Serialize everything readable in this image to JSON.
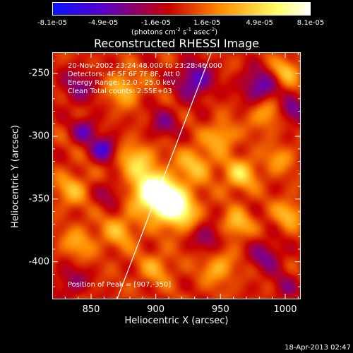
{
  "colorbar": {
    "ticks": [
      "-8.1e-05",
      "-4.9e-05",
      "-1.6e-05",
      "1.6e-05",
      "4.9e-05",
      "8.1e-05"
    ],
    "tick_values": [
      -8.1e-05,
      -4.9e-05,
      -1.6e-05,
      1.6e-05,
      4.9e-05,
      8.1e-05
    ],
    "range": [
      -8.1e-05,
      8.1e-05
    ],
    "units_prefix": "(photons cm",
    "units_exp1": "-2",
    "units_mid": " s",
    "units_exp2": "-1",
    "units_suffix": " asec",
    "units_exp3": "-2",
    "units_close": ")",
    "colors": [
      "#0a14ff",
      "#5a00c8",
      "#c80000",
      "#ff8c00",
      "#ffff64",
      "#ffffff"
    ]
  },
  "chart_data": {
    "type": "heatmap",
    "title": "Reconstructed RHESSI Image",
    "xlabel": "Heliocentric X (arcsec)",
    "ylabel": "Heliocentric Y (arcsec)",
    "xlim": [
      820,
      1012
    ],
    "ylim": [
      -430,
      -233
    ],
    "xticks": [
      850,
      900,
      950,
      1000
    ],
    "yticks": [
      -250,
      -300,
      -350,
      -400
    ],
    "annotations": [
      "20-Nov-2002 23:24:48.000 to 23:28:46.000",
      "Detectors: 4F 5F 6F 7F 8F, Att 0",
      "Energy Range: 12.0 - 25.0 keV",
      "Clean     Total counts: 2.55E+03"
    ],
    "peak_label": "Position of Peak = [907,-350]",
    "peak": [
      907,
      -350
    ],
    "limb_line": [
      [
        870,
        -430
      ],
      [
        943,
        -233
      ]
    ],
    "intensity_blobs": [
      {
        "x": 907,
        "y": -350,
        "amp": 8.1e-05,
        "s": 11
      },
      {
        "x": 895,
        "y": -343,
        "amp": 6.2e-05,
        "s": 10
      },
      {
        "x": 918,
        "y": -360,
        "amp": 5e-05,
        "s": 10
      },
      {
        "x": 885,
        "y": -320,
        "amp": 4.2e-05,
        "s": 11
      },
      {
        "x": 930,
        "y": -322,
        "amp": 3.8e-05,
        "s": 10
      },
      {
        "x": 950,
        "y": -300,
        "amp": 3.8e-05,
        "s": 8
      },
      {
        "x": 965,
        "y": -330,
        "amp": 4.6e-05,
        "s": 9
      },
      {
        "x": 962,
        "y": -370,
        "amp": 4e-05,
        "s": 8
      },
      {
        "x": 985,
        "y": -282,
        "amp": 3.4e-05,
        "s": 9
      },
      {
        "x": 1002,
        "y": -362,
        "amp": 3.6e-05,
        "s": 8
      },
      {
        "x": 948,
        "y": -405,
        "amp": 3.4e-05,
        "s": 9
      },
      {
        "x": 872,
        "y": -375,
        "amp": 3.3e-05,
        "s": 10
      },
      {
        "x": 835,
        "y": -342,
        "amp": 3.4e-05,
        "s": 9
      },
      {
        "x": 840,
        "y": -385,
        "amp": 3e-05,
        "s": 9
      },
      {
        "x": 875,
        "y": -262,
        "amp": 3.8e-05,
        "s": 9
      },
      {
        "x": 1000,
        "y": -248,
        "amp": 3.8e-05,
        "s": 8
      },
      {
        "x": 995,
        "y": -318,
        "amp": 2.6e-05,
        "s": 8
      },
      {
        "x": 900,
        "y": -405,
        "amp": 2.8e-05,
        "s": 9
      },
      {
        "x": 860,
        "y": -310,
        "amp": -5.6e-05,
        "s": 7
      },
      {
        "x": 845,
        "y": -295,
        "amp": -4.2e-05,
        "s": 7
      },
      {
        "x": 930,
        "y": -255,
        "amp": -5.2e-05,
        "s": 10
      },
      {
        "x": 905,
        "y": -290,
        "amp": -3e-05,
        "s": 9
      },
      {
        "x": 980,
        "y": -260,
        "amp": -4.8e-05,
        "s": 10
      },
      {
        "x": 1005,
        "y": -280,
        "amp": -4e-05,
        "s": 8
      },
      {
        "x": 840,
        "y": -260,
        "amp": -3.2e-05,
        "s": 10
      },
      {
        "x": 940,
        "y": -380,
        "amp": -3.4e-05,
        "s": 8
      },
      {
        "x": 985,
        "y": -395,
        "amp": -3.6e-05,
        "s": 9
      },
      {
        "x": 835,
        "y": -415,
        "amp": -2.8e-05,
        "s": 9
      },
      {
        "x": 865,
        "y": -345,
        "amp": -2.6e-05,
        "s": 8
      },
      {
        "x": 1000,
        "y": -420,
        "amp": -2.4e-05,
        "s": 8
      }
    ]
  },
  "footer": {
    "timestamp": "18-Apr-2013 02:47"
  }
}
